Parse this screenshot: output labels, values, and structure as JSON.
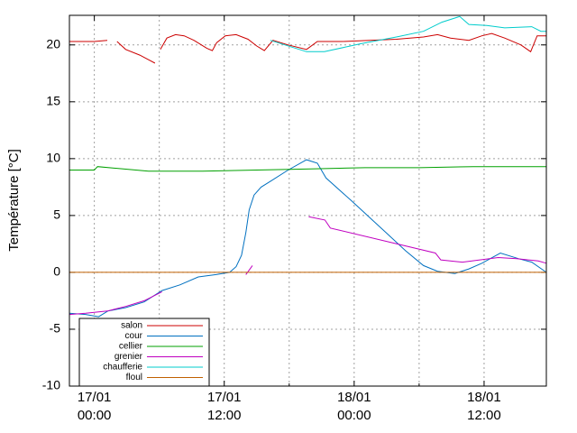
{
  "chart_data": {
    "type": "line",
    "y_label": "Température [°C]",
    "xlim": [
      -2.3,
      41.75
    ],
    "ylim": [
      -10,
      22.6
    ],
    "yticks": [
      -10,
      -5,
      0,
      5,
      10,
      15,
      20
    ],
    "xticks": [
      {
        "value": 0,
        "label": "17/01\n00:00"
      },
      {
        "value": 12,
        "label": "17/01\n12:00"
      },
      {
        "value": 24,
        "label": "18/01\n00:00"
      },
      {
        "value": 36,
        "label": "18/01\n12:00"
      }
    ],
    "xgrid_minor": [
      6,
      18,
      30
    ],
    "grid": true,
    "legend": "bottom-left",
    "series": [
      {
        "name": "salon",
        "color": "#cc0000",
        "x": [
          -2.3,
          0,
          1.2,
          1.6,
          2.1,
          2.9,
          4.2,
          5.0,
          5.6,
          5.9,
          6.1,
          6.7,
          7.5,
          8.3,
          9.2,
          10.4,
          10.9,
          11.3,
          12.1,
          13.1,
          14.2,
          15.0,
          15.7,
          16.5,
          17.9,
          19.6,
          20.6,
          22.9,
          25.4,
          27.9,
          30.4,
          31.7,
          32.9,
          34.6,
          35.8,
          36.7,
          37.9,
          39.4,
          40.3,
          40.9,
          41.75
        ],
        "values": [
          20.3,
          20.3,
          20.4,
          null,
          20.3,
          19.6,
          19.1,
          18.7,
          18.4,
          null,
          19.6,
          20.6,
          20.9,
          20.8,
          20.4,
          19.7,
          19.5,
          20.2,
          20.8,
          20.9,
          20.5,
          19.9,
          19.5,
          20.4,
          20.0,
          19.6,
          20.3,
          20.3,
          20.4,
          20.5,
          20.7,
          20.9,
          20.6,
          20.4,
          20.8,
          21.0,
          20.6,
          20.0,
          19.4,
          20.8,
          20.8
        ]
      },
      {
        "name": "cour",
        "color": "#0070c0",
        "x": [
          -2.3,
          -0.8,
          0.4,
          1.25,
          2.9,
          4.6,
          6.25,
          7.9,
          9.6,
          11.25,
          12.5,
          13.1,
          13.6,
          14.0,
          14.3,
          14.75,
          15.4,
          16.25,
          17.9,
          19.6,
          20.6,
          21.4,
          23.75,
          26.25,
          28.75,
          30.4,
          31.7,
          33.3,
          34.6,
          35.8,
          37.5,
          39.2,
          40.4,
          41.75
        ],
        "values": [
          -3.6,
          -3.7,
          -3.9,
          -3.4,
          -3.1,
          -2.6,
          -1.6,
          -1.1,
          -0.4,
          -0.2,
          0,
          0.5,
          1.5,
          3.5,
          5.5,
          6.8,
          7.5,
          8.0,
          9.0,
          9.9,
          9.6,
          8.3,
          6.3,
          4.1,
          1.9,
          0.6,
          0.1,
          -0.1,
          0.3,
          0.8,
          1.7,
          1.2,
          0.9,
          0
        ]
      },
      {
        "name": "cellier",
        "color": "#00a000",
        "x": [
          -2.3,
          0,
          0.3,
          5,
          10,
          15,
          20,
          25,
          30,
          35,
          41.75
        ],
        "values": [
          9.0,
          9.0,
          9.3,
          8.9,
          8.9,
          9.0,
          9.1,
          9.2,
          9.2,
          9.3,
          9.3
        ]
      },
      {
        "name": "grenier",
        "color": "#c000c0",
        "x": [
          -2.3,
          -0.8,
          1.2,
          2.9,
          4.6,
          6.25,
          7.0,
          14.0,
          14.6,
          15.0,
          19.8,
          21.3,
          21.8,
          31.5,
          32.0,
          34.0,
          37.3,
          39.0,
          41.0,
          41.75
        ],
        "values": [
          -3.7,
          -3.6,
          -3.4,
          -3.0,
          -2.5,
          -1.7,
          null,
          -0.2,
          0.6,
          null,
          4.9,
          4.6,
          3.9,
          1.7,
          1.1,
          0.9,
          1.3,
          1.2,
          1.0,
          0.8
        ]
      },
      {
        "name": "chaufferie",
        "color": "#00cccc",
        "x": [
          16.25,
          19.6,
          21.25,
          24.6,
          27.9,
          30.4,
          32.1,
          33.75,
          34.6,
          36.25,
          37.9,
          40.4,
          41.25,
          41.75
        ],
        "values": [
          20.4,
          19.4,
          19.4,
          20.1,
          20.7,
          21.2,
          22.0,
          22.5,
          21.8,
          21.7,
          21.5,
          21.6,
          21.2,
          21.2
        ]
      },
      {
        "name": "floul",
        "color": "#c06000",
        "x": [
          -2.3,
          41.75
        ],
        "values": [
          0,
          0
        ]
      }
    ]
  }
}
